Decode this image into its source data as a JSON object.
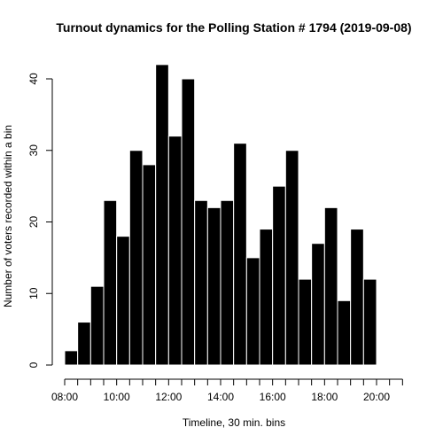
{
  "chart_data": {
    "type": "bar",
    "title": "Turnout dynamics for the Polling Station # 1794 (2019-09-08)",
    "xlabel": "Timeline, 30 min. bins",
    "ylabel": "Number of voters recorded within a bin",
    "x_start_hour": 8,
    "bin_hours": 0.5,
    "xlim": [
      8,
      21
    ],
    "ylim": [
      0,
      42
    ],
    "x_tick_labels": [
      "08:00",
      "10:00",
      "12:00",
      "14:00",
      "16:00",
      "18:00",
      "20:00"
    ],
    "y_ticks": [
      0,
      10,
      20,
      30,
      40
    ],
    "values": [
      2,
      6,
      11,
      23,
      18,
      30,
      28,
      42,
      32,
      40,
      23,
      22,
      23,
      31,
      15,
      19,
      25,
      30,
      12,
      17,
      22,
      9,
      19,
      12
    ],
    "bar_color": "#000000",
    "bar_border_color": "#ffffff"
  }
}
